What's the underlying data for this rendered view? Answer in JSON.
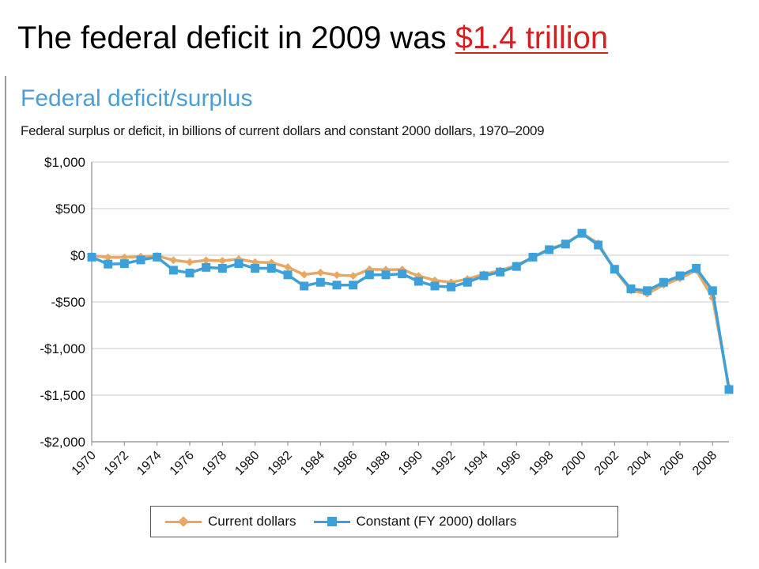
{
  "slide": {
    "title_prefix": "The federal deficit in 2009 was ",
    "title_highlight": "$1.4 trillion"
  },
  "colors": {
    "title_highlight": "#d42020",
    "chart_title": "#4b9fd6",
    "current_series": "#e8a863",
    "constant_series": "#3ea0d8",
    "grid": "#c8c8c8"
  },
  "chart_data": {
    "type": "line",
    "title": "Federal deficit/surplus",
    "subtitle": "Federal surplus or deficit, in billions of current dollars and constant 2000 dollars, 1970–2009",
    "ylim": [
      -2000,
      1000
    ],
    "y_ticks": [
      1000,
      500,
      0,
      -500,
      -1000,
      -1500,
      -2000
    ],
    "y_tick_labels": [
      "$1,000",
      "$500",
      "$0",
      "-$500",
      "-$1,000",
      "-$1,500",
      "-$2,000"
    ],
    "x_tick_labels": [
      "1970",
      "1972",
      "1974",
      "1976",
      "1978",
      "1980",
      "1982",
      "1984",
      "1986",
      "1988",
      "1990",
      "1992",
      "1994",
      "1996",
      "1998",
      "2000",
      "2002",
      "2004",
      "2006",
      "2008"
    ],
    "grid": "horizontal",
    "legend_position": "bottom",
    "x": [
      1970,
      1971,
      1972,
      1973,
      1974,
      1975,
      1976,
      1977,
      1978,
      1979,
      1980,
      1981,
      1982,
      1983,
      1984,
      1985,
      1986,
      1987,
      1988,
      1989,
      1990,
      1991,
      1992,
      1993,
      1994,
      1995,
      1996,
      1997,
      1998,
      1999,
      2000,
      2001,
      2002,
      2003,
      2004,
      2005,
      2006,
      2007,
      2008,
      2009
    ],
    "series": [
      {
        "name": "Current dollars",
        "marker": "diamond",
        "values": [
          -3,
          -23,
          -23,
          -15,
          -6,
          -53,
          -74,
          -54,
          -59,
          -41,
          -74,
          -79,
          -128,
          -208,
          -185,
          -212,
          -221,
          -150,
          -155,
          -153,
          -221,
          -269,
          -290,
          -255,
          -203,
          -164,
          -107,
          -22,
          69,
          126,
          236,
          128,
          -158,
          -378,
          -413,
          -318,
          -248,
          -161,
          -459,
          -1413
        ]
      },
      {
        "name": "Constant (FY 2000) dollars",
        "marker": "square",
        "values": [
          -20,
          -95,
          -90,
          -50,
          -20,
          -160,
          -190,
          -130,
          -140,
          -90,
          -140,
          -140,
          -210,
          -330,
          -290,
          -320,
          -320,
          -210,
          -210,
          -200,
          -280,
          -330,
          -340,
          -290,
          -220,
          -180,
          -120,
          -20,
          60,
          120,
          236,
          110,
          -150,
          -360,
          -380,
          -290,
          -220,
          -140,
          -380,
          -1440
        ]
      }
    ]
  }
}
